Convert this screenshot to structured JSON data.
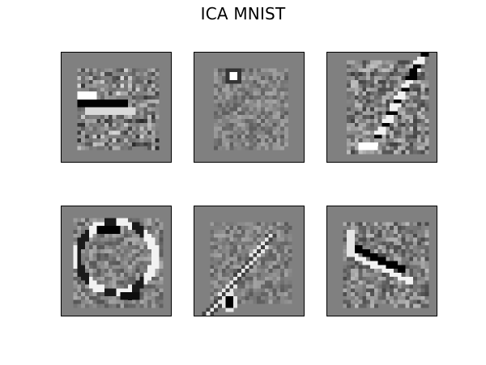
{
  "figure": {
    "title": "ICA MNIST"
  },
  "panels": [
    {
      "grid": "28x28",
      "pattern": "dense-horizontal-strokes-with-dark-bar"
    },
    {
      "grid": "28x28",
      "pattern": "faint-texture-with-bright-blob-top"
    },
    {
      "grid": "28x28",
      "pattern": "diagonal-stroke-one-like"
    },
    {
      "grid": "28x28",
      "pattern": "curved-zero-like-ring"
    },
    {
      "grid": "28x28",
      "pattern": "diagonal-slash-bottom-left-dark"
    },
    {
      "grid": "28x28",
      "pattern": "diagonal-band-left"
    }
  ],
  "colors": {
    "background": "#808080",
    "border": "#000000"
  }
}
